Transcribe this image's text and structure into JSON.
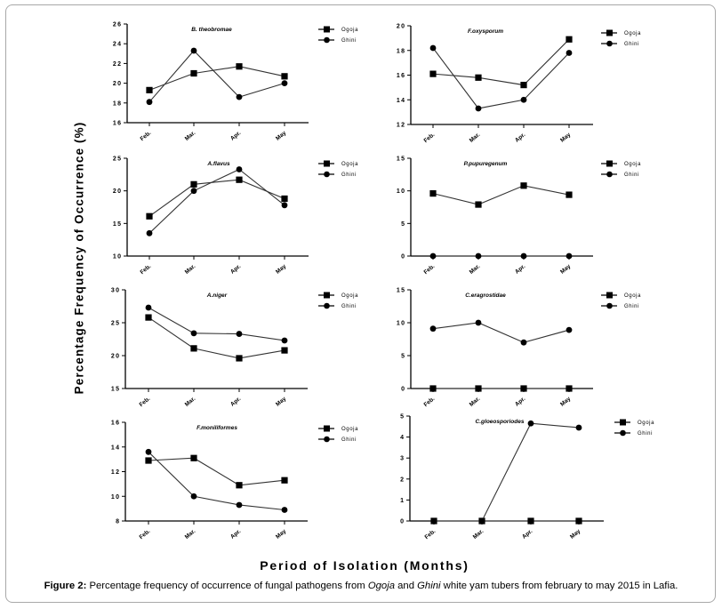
{
  "figure": {
    "y_axis_label": "Percentage Frequency of Occurrence (%)",
    "x_axis_label": "Period of Isolation (Months)",
    "caption": {
      "label": "Figure 2:",
      "text_part1": " Percentage frequency of occurrence of fungal pathogens from ",
      "italic1": "Ogoja",
      "text_part2": " and ",
      "italic2": "Ghini",
      "text_part3": " white yam tubers from february to may 2015 in Lafia."
    }
  },
  "chart_data": [
    {
      "type": "line",
      "title": "B. theobromae",
      "categories": [
        "Feb.",
        "Mar.",
        "Apr.",
        "May"
      ],
      "ylim": [
        16,
        26
      ],
      "yticks": [
        16,
        18,
        20,
        22,
        24,
        26
      ],
      "legend": "right",
      "series": [
        {
          "name": "Ogoja",
          "marker": "square",
          "values": [
            19.3,
            21.0,
            21.7,
            20.7
          ]
        },
        {
          "name": "Ghini",
          "marker": "circle",
          "values": [
            18.1,
            23.3,
            18.6,
            20.0
          ]
        }
      ]
    },
    {
      "type": "line",
      "title": "F.oxysporum",
      "categories": [
        "Feb.",
        "Mar.",
        "Apr.",
        "May"
      ],
      "ylim": [
        12,
        20
      ],
      "yticks": [
        12,
        14,
        16,
        18,
        20
      ],
      "legend": "right",
      "series": [
        {
          "name": "Ogoja",
          "marker": "square",
          "values": [
            16.1,
            15.8,
            15.2,
            18.9
          ]
        },
        {
          "name": "Ghini",
          "marker": "circle",
          "values": [
            18.2,
            13.3,
            14.0,
            17.8
          ]
        }
      ]
    },
    {
      "type": "line",
      "title": "A.flavus",
      "categories": [
        "Feb.",
        "Mar.",
        "Apr.",
        "May"
      ],
      "ylim": [
        10,
        25
      ],
      "yticks": [
        10,
        15,
        20,
        25
      ],
      "legend": "right",
      "series": [
        {
          "name": "Ogoja",
          "marker": "square",
          "values": [
            16.1,
            21.0,
            21.7,
            18.8
          ]
        },
        {
          "name": "Ghini",
          "marker": "circle",
          "values": [
            13.5,
            20.0,
            23.3,
            17.8
          ]
        }
      ]
    },
    {
      "type": "line",
      "title": "P.pupuregenum",
      "categories": [
        "Feb.",
        "Mar.",
        "Apr.",
        "May"
      ],
      "ylim": [
        0,
        15
      ],
      "yticks": [
        0,
        5,
        10,
        15
      ],
      "legend": "right",
      "series": [
        {
          "name": "Ogoja",
          "marker": "square",
          "values": [
            9.6,
            7.9,
            10.8,
            9.4
          ]
        },
        {
          "name": "Ghini",
          "marker": "circle",
          "values": [
            0,
            0,
            0,
            0
          ]
        }
      ]
    },
    {
      "type": "line",
      "title": "A.niger",
      "categories": [
        "Feb.",
        "Mar.",
        "Apr.",
        "May"
      ],
      "ylim": [
        15,
        30
      ],
      "yticks": [
        15,
        20,
        25,
        30
      ],
      "legend": "right",
      "series": [
        {
          "name": "Ogoja",
          "marker": "square",
          "values": [
            25.8,
            21.1,
            19.6,
            20.8
          ]
        },
        {
          "name": "Ghini",
          "marker": "circle",
          "values": [
            27.3,
            23.4,
            23.3,
            22.3
          ]
        }
      ]
    },
    {
      "type": "line",
      "title": "C.eragrostidae",
      "categories": [
        "Feb.",
        "Mar.",
        "Apr.",
        "May"
      ],
      "ylim": [
        0,
        15
      ],
      "yticks": [
        0,
        5,
        10,
        15
      ],
      "legend": "right",
      "series": [
        {
          "name": "Ogoja",
          "marker": "square",
          "values": [
            0,
            0,
            0,
            0
          ]
        },
        {
          "name": "Ghini",
          "marker": "circle",
          "values": [
            9.1,
            10.0,
            7.0,
            8.9
          ]
        }
      ]
    },
    {
      "type": "line",
      "title": "F.moniliformes",
      "categories": [
        "Feb.",
        "Mar.",
        "Apr.",
        "May"
      ],
      "ylim": [
        8,
        16
      ],
      "yticks": [
        8,
        10,
        12,
        14,
        16
      ],
      "legend": "right",
      "series": [
        {
          "name": "Ogoja",
          "marker": "square",
          "values": [
            12.9,
            13.1,
            10.9,
            11.3
          ]
        },
        {
          "name": "Ghini",
          "marker": "circle",
          "values": [
            13.6,
            10.0,
            9.3,
            8.9
          ]
        }
      ]
    },
    {
      "type": "line",
      "title": "C.gloeosporiodes",
      "categories": [
        "Feb.",
        "Mar.",
        "Apr.",
        "May"
      ],
      "ylim": [
        0,
        5
      ],
      "yticks": [
        0,
        1,
        2,
        3,
        4,
        5
      ],
      "legend": "right",
      "series": [
        {
          "name": "Ogoja",
          "marker": "square",
          "values": [
            0,
            0,
            0,
            0
          ]
        },
        {
          "name": "Ghini",
          "marker": "circle",
          "values": [
            0,
            0,
            4.65,
            4.45
          ]
        }
      ]
    }
  ]
}
